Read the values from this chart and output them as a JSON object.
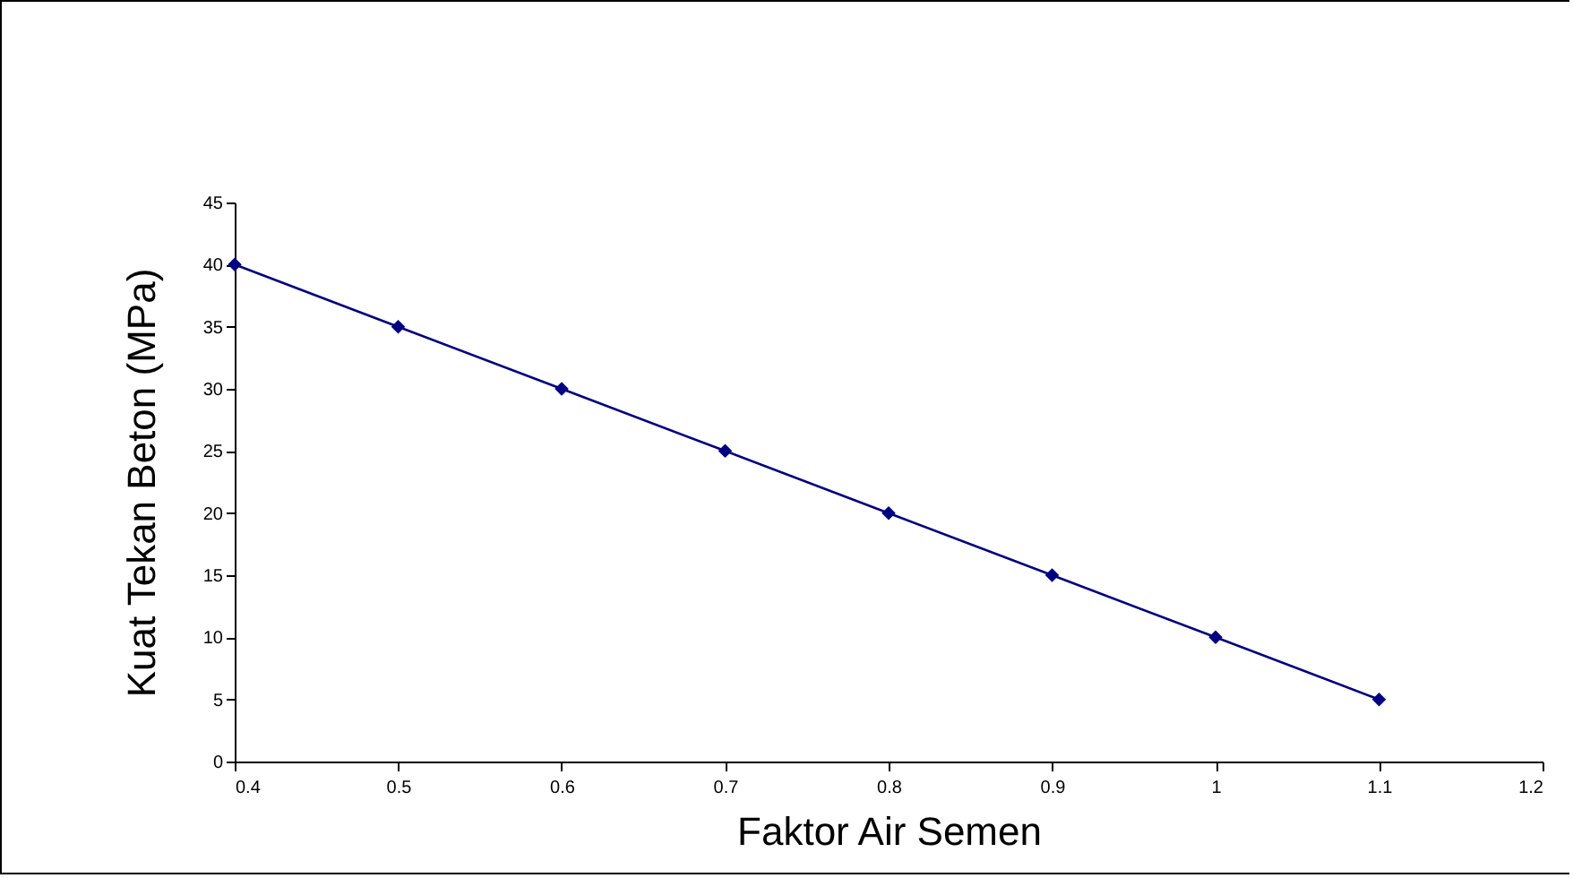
{
  "chart_data": {
    "type": "line",
    "xlabel": "Faktor Air Semen",
    "ylabel": "Kuat Tekan Beton (MPa)",
    "x": [
      0.4,
      0.5,
      0.6,
      0.7,
      0.8,
      0.9,
      1,
      1.1
    ],
    "series": [
      {
        "color": "#000080",
        "values": [
          40,
          35,
          30,
          25,
          20,
          15,
          10,
          5
        ]
      }
    ],
    "xlim": [
      0.4,
      1.2
    ],
    "xticks": [
      0.4,
      0.5,
      0.6,
      0.7,
      0.8,
      0.9,
      1,
      1.1,
      1.2
    ],
    "ylim": [
      0,
      45
    ],
    "yticks": [
      0,
      5,
      10,
      15,
      20,
      25,
      30,
      35,
      40,
      45
    ],
    "grid": false,
    "marker": "diamond",
    "line_style": "solid"
  }
}
